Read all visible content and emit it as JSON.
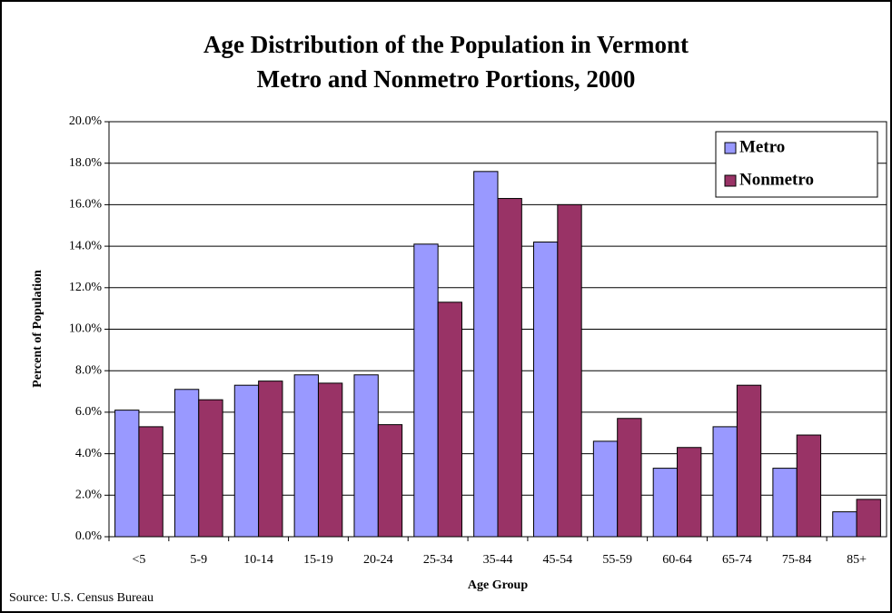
{
  "chart_data": {
    "type": "bar",
    "title": "Age Distribution of the Population in Vermont",
    "subtitle": "Metro and Nonmetro Portions, 2000",
    "x_label": "Age Group",
    "y_label": "Percent of Population",
    "source": "Source: U.S. Census Bureau",
    "categories": [
      "<5",
      "5-9",
      "10-14",
      "15-19",
      "20-24",
      "25-34",
      "35-44",
      "45-54",
      "55-59",
      "60-64",
      "65-74",
      "75-84",
      "85+"
    ],
    "series": [
      {
        "name": "Metro",
        "color": "#9999ff",
        "values": [
          6.1,
          7.1,
          7.3,
          7.8,
          7.8,
          14.1,
          17.6,
          14.2,
          4.6,
          3.3,
          5.3,
          3.3,
          1.2
        ]
      },
      {
        "name": "Nonmetro",
        "color": "#993366",
        "values": [
          5.3,
          6.6,
          7.5,
          7.4,
          5.4,
          11.3,
          16.3,
          16.0,
          5.7,
          4.3,
          7.3,
          4.9,
          1.8
        ]
      }
    ],
    "ylim": [
      0,
      20
    ],
    "yticks": [
      {
        "value": 0,
        "label": "0.0%"
      },
      {
        "value": 2,
        "label": "2.0%"
      },
      {
        "value": 4,
        "label": "4.0%"
      },
      {
        "value": 6,
        "label": "6.0%"
      },
      {
        "value": 8,
        "label": "8.0%"
      },
      {
        "value": 10,
        "label": "10.0%"
      },
      {
        "value": 12,
        "label": "12.0%"
      },
      {
        "value": 14,
        "label": "14.0%"
      },
      {
        "value": 16,
        "label": "16.0%"
      },
      {
        "value": 18,
        "label": "18.0%"
      },
      {
        "value": 20,
        "label": "20.0%"
      }
    ],
    "grid": true,
    "legend": "top-right"
  }
}
